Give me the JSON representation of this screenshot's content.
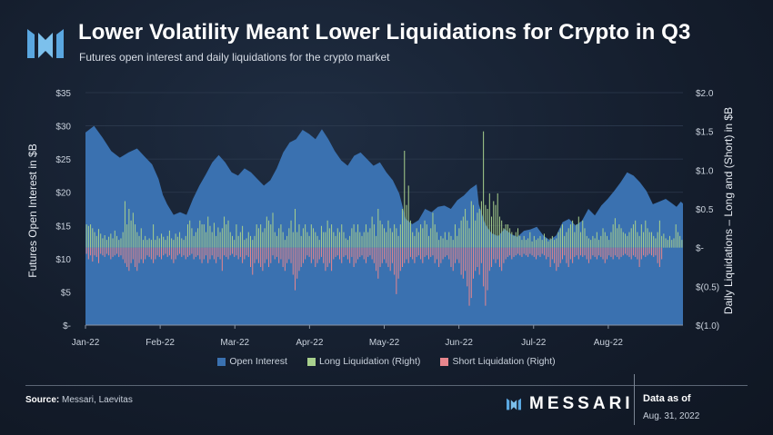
{
  "header": {
    "title": "Lower Volatility Meant Lower Liquidations for Crypto in Q3",
    "subtitle": "Futures open interest and daily liquidations for the crypto market"
  },
  "colors": {
    "open_interest": "#3a71b0",
    "long_liquidation": "#a8d08d",
    "short_liquidation": "#e7868d",
    "accent": "#5aa7e0"
  },
  "chart_data": {
    "type": "area",
    "x_labels": [
      "Jan-22",
      "Feb-22",
      "Mar-22",
      "Apr-22",
      "May-22",
      "Jun-22",
      "Jul-22",
      "Aug-22"
    ],
    "ylabel": "Futures Open Interest in $B",
    "ylabel_right": "Daily Liquidations – Long and (Short) in $B",
    "y_left_ticks": [
      "$35",
      "$30",
      "$25",
      "$20",
      "$15",
      "$10",
      "$5",
      "$-"
    ],
    "y_right_ticks": [
      "$2.0",
      "$1.5",
      "$1.0",
      "$0.5",
      "$-",
      "$(0.5)",
      "$(1.0)"
    ],
    "ylim_left": [
      0,
      35
    ],
    "ylim_right": [
      -1.0,
      2.0
    ],
    "grid": true,
    "legend_position": "bottom",
    "series": [
      {
        "name": "Open Interest",
        "axis": "left",
        "points": [
          [
            0,
            29.0
          ],
          [
            4,
            30.0
          ],
          [
            8,
            28.2
          ],
          [
            12,
            26.2
          ],
          [
            16,
            25.2
          ],
          [
            20,
            26.0
          ],
          [
            24,
            26.6
          ],
          [
            28,
            25.2
          ],
          [
            31,
            24.2
          ],
          [
            34,
            22.0
          ],
          [
            36,
            19.6
          ],
          [
            38,
            18.2
          ],
          [
            41,
            16.6
          ],
          [
            44,
            17.0
          ],
          [
            47,
            16.6
          ],
          [
            50,
            19.0
          ],
          [
            53,
            21.0
          ],
          [
            56,
            22.7
          ],
          [
            59,
            24.5
          ],
          [
            62,
            25.6
          ],
          [
            65,
            24.5
          ],
          [
            68,
            23.0
          ],
          [
            71,
            22.5
          ],
          [
            74,
            23.6
          ],
          [
            77,
            23.0
          ],
          [
            80,
            22.0
          ],
          [
            83,
            21.0
          ],
          [
            86,
            21.8
          ],
          [
            89,
            23.6
          ],
          [
            92,
            26.0
          ],
          [
            95,
            27.5
          ],
          [
            98,
            28.0
          ],
          [
            101,
            29.4
          ],
          [
            104,
            28.8
          ],
          [
            107,
            28.0
          ],
          [
            110,
            29.5
          ],
          [
            113,
            28.0
          ],
          [
            116,
            26.2
          ],
          [
            119,
            24.8
          ],
          [
            122,
            24.0
          ],
          [
            125,
            25.5
          ],
          [
            128,
            26.0
          ],
          [
            131,
            25.0
          ],
          [
            134,
            24.0
          ],
          [
            137,
            24.5
          ],
          [
            140,
            23.0
          ],
          [
            143,
            21.8
          ],
          [
            146,
            19.8
          ],
          [
            149,
            16.0
          ],
          [
            152,
            15.2
          ],
          [
            155,
            15.8
          ],
          [
            158,
            17.5
          ],
          [
            161,
            17.0
          ],
          [
            164,
            17.8
          ],
          [
            167,
            18.0
          ],
          [
            170,
            17.5
          ],
          [
            173,
            18.8
          ],
          [
            176,
            19.5
          ],
          [
            179,
            20.5
          ],
          [
            182,
            21.2
          ],
          [
            183,
            18.2
          ],
          [
            186,
            15.2
          ],
          [
            189,
            13.8
          ],
          [
            192,
            13.4
          ],
          [
            195,
            14.5
          ],
          [
            198,
            13.7
          ],
          [
            201,
            13.3
          ],
          [
            204,
            14.2
          ],
          [
            207,
            14.4
          ],
          [
            210,
            14.8
          ],
          [
            213,
            13.5
          ],
          [
            216,
            12.8
          ],
          [
            219,
            13.5
          ],
          [
            222,
            15.5
          ],
          [
            225,
            16.0
          ],
          [
            228,
            15.0
          ],
          [
            231,
            15.7
          ],
          [
            234,
            17.5
          ],
          [
            237,
            16.5
          ],
          [
            240,
            18.0
          ],
          [
            243,
            19.0
          ],
          [
            246,
            20.2
          ],
          [
            249,
            21.5
          ],
          [
            252,
            23.0
          ],
          [
            255,
            22.5
          ],
          [
            258,
            21.5
          ],
          [
            261,
            20.2
          ],
          [
            264,
            18.2
          ],
          [
            267,
            18.6
          ],
          [
            270,
            19.0
          ],
          [
            273,
            18.3
          ],
          [
            275,
            17.8
          ],
          [
            277,
            18.6
          ],
          [
            278,
            18.3
          ]
        ]
      },
      {
        "name": "Long Liquidation (Right)",
        "axis": "right",
        "type": "bar",
        "values": [
          0.3,
          0.28,
          0.3,
          0.25,
          0.2,
          0.15,
          0.24,
          0.18,
          0.12,
          0.16,
          0.1,
          0.14,
          0.18,
          0.12,
          0.22,
          0.15,
          0.1,
          0.12,
          0.2,
          0.6,
          0.3,
          0.5,
          0.35,
          0.45,
          0.3,
          0.2,
          0.15,
          0.25,
          0.1,
          0.15,
          0.1,
          0.12,
          0.1,
          0.3,
          0.1,
          0.15,
          0.12,
          0.18,
          0.14,
          0.1,
          0.15,
          0.22,
          0.12,
          0.1,
          0.18,
          0.14,
          0.2,
          0.12,
          0.1,
          0.15,
          0.3,
          0.35,
          0.25,
          0.15,
          0.2,
          0.25,
          0.35,
          0.3,
          0.3,
          0.2,
          0.4,
          0.28,
          0.2,
          0.32,
          0.15,
          0.26,
          0.2,
          0.25,
          0.4,
          0.3,
          0.35,
          0.2,
          0.15,
          0.1,
          0.3,
          0.15,
          0.2,
          0.28,
          0.1,
          0.12,
          0.2,
          0.15,
          0.1,
          0.15,
          0.3,
          0.25,
          0.3,
          0.2,
          0.25,
          0.4,
          0.35,
          0.3,
          0.45,
          0.2,
          0.15,
          0.25,
          0.3,
          0.2,
          0.1,
          0.15,
          0.25,
          0.35,
          0.2,
          0.5,
          0.2,
          0.3,
          0.15,
          0.25,
          0.3,
          0.2,
          0.15,
          0.3,
          0.25,
          0.2,
          0.15,
          0.1,
          0.28,
          0.2,
          0.2,
          0.35,
          0.25,
          0.3,
          0.2,
          0.15,
          0.25,
          0.2,
          0.3,
          0.2,
          0.12,
          0.1,
          0.15,
          0.25,
          0.3,
          0.2,
          0.3,
          0.2,
          0.15,
          0.2,
          0.3,
          0.2,
          0.25,
          0.4,
          0.3,
          0.15,
          0.5,
          0.35,
          0.3,
          0.25,
          0.2,
          0.35,
          0.25,
          0.2,
          0.3,
          0.25,
          0.15,
          0.3,
          0.5,
          1.25,
          0.55,
          0.8,
          0.35,
          0.2,
          0.15,
          0.25,
          0.2,
          0.3,
          0.25,
          0.35,
          0.3,
          0.15,
          0.25,
          0.45,
          0.3,
          0.2,
          0.1,
          0.15,
          0.12,
          0.2,
          0.1,
          0.2,
          0.15,
          0.1,
          0.3,
          0.15,
          0.25,
          0.35,
          0.4,
          0.5,
          0.35,
          0.25,
          0.6,
          0.55,
          0.35,
          0.45,
          0.5,
          0.6,
          1.5,
          0.55,
          0.5,
          0.7,
          0.4,
          0.6,
          0.55,
          0.7,
          0.4,
          0.35,
          0.25,
          0.3,
          0.3,
          0.25,
          0.2,
          0.15,
          0.2,
          0.25,
          0.15,
          0.1,
          0.15,
          0.1,
          0.12,
          0.2,
          0.08,
          0.15,
          0.1,
          0.12,
          0.15,
          0.1,
          0.18,
          0.12,
          0.08,
          0.12,
          0.15,
          0.1,
          0.12,
          0.2,
          0.25,
          0.3,
          0.15,
          0.2,
          0.25,
          0.3,
          0.35,
          0.2,
          0.3,
          0.4,
          0.2,
          0.35,
          0.25,
          0.15,
          0.12,
          0.1,
          0.15,
          0.12,
          0.2,
          0.1,
          0.15,
          0.25,
          0.2,
          0.15,
          0.1,
          0.2,
          0.3,
          0.38,
          0.25,
          0.3,
          0.25,
          0.2,
          0.18,
          0.15,
          0.2,
          0.25,
          0.3,
          0.35,
          0.2,
          0.15,
          0.3,
          0.2,
          0.35,
          0.25,
          0.2,
          0.2,
          0.15,
          0.12,
          0.2,
          0.35,
          0.15,
          0.18,
          0.12,
          0.1,
          0.15,
          0.1,
          0.12,
          0.3,
          0.2,
          0.15,
          0.1
        ]
      },
      {
        "name": "Short Liquidation (Right)",
        "axis": "right",
        "type": "bar",
        "values": [
          -0.08,
          -0.15,
          -0.1,
          -0.18,
          -0.1,
          -0.12,
          -0.2,
          -0.08,
          -0.1,
          -0.12,
          -0.08,
          -0.1,
          -0.15,
          -0.12,
          -0.1,
          -0.08,
          -0.12,
          -0.1,
          -0.15,
          -0.2,
          -0.25,
          -0.3,
          -0.2,
          -0.15,
          -0.25,
          -0.3,
          -0.2,
          -0.15,
          -0.2,
          -0.15,
          -0.1,
          -0.12,
          -0.15,
          -0.2,
          -0.15,
          -0.1,
          -0.12,
          -0.15,
          -0.1,
          -0.08,
          -0.12,
          -0.1,
          -0.15,
          -0.2,
          -0.15,
          -0.1,
          -0.08,
          -0.12,
          -0.1,
          -0.15,
          -0.12,
          -0.1,
          -0.08,
          -0.15,
          -0.12,
          -0.1,
          -0.15,
          -0.2,
          -0.15,
          -0.1,
          -0.2,
          -0.15,
          -0.1,
          -0.15,
          -0.2,
          -0.12,
          -0.15,
          -0.3,
          -0.1,
          -0.12,
          -0.15,
          -0.1,
          -0.08,
          -0.12,
          -0.1,
          -0.15,
          -0.12,
          -0.2,
          -0.15,
          -0.1,
          -0.12,
          -0.25,
          -0.35,
          -0.2,
          -0.15,
          -0.2,
          -0.25,
          -0.3,
          -0.2,
          -0.15,
          -0.25,
          -0.2,
          -0.1,
          -0.15,
          -0.12,
          -0.2,
          -0.15,
          -0.25,
          -0.3,
          -0.2,
          -0.15,
          -0.2,
          -0.35,
          -0.55,
          -0.4,
          -0.3,
          -0.25,
          -0.2,
          -0.15,
          -0.1,
          -0.12,
          -0.2,
          -0.15,
          -0.25,
          -0.2,
          -0.15,
          -0.12,
          -0.2,
          -0.3,
          -0.25,
          -0.2,
          -0.3,
          -0.15,
          -0.12,
          -0.1,
          -0.15,
          -0.2,
          -0.12,
          -0.1,
          -0.15,
          -0.2,
          -0.12,
          -0.25,
          -0.2,
          -0.15,
          -0.12,
          -0.1,
          -0.15,
          -0.2,
          -0.12,
          -0.1,
          -0.15,
          -0.2,
          -0.3,
          -0.4,
          -0.25,
          -0.2,
          -0.15,
          -0.2,
          -0.25,
          -0.3,
          -0.2,
          -0.35,
          -0.6,
          -0.4,
          -0.3,
          -0.25,
          -0.2,
          -0.15,
          -0.2,
          -0.12,
          -0.15,
          -0.2,
          -0.12,
          -0.1,
          -0.15,
          -0.2,
          -0.12,
          -0.1,
          -0.15,
          -0.12,
          -0.1,
          -0.2,
          -0.15,
          -0.25,
          -0.2,
          -0.15,
          -0.12,
          -0.1,
          -0.15,
          -0.25,
          -0.3,
          -0.2,
          -0.15,
          -0.2,
          -0.35,
          -0.4,
          -0.3,
          -0.5,
          -0.75,
          -0.65,
          -0.4,
          -0.3,
          -0.25,
          -0.35,
          -0.2,
          -0.5,
          -0.75,
          -0.55,
          -0.3,
          -0.25,
          -0.15,
          -0.2,
          -0.15,
          -0.25,
          -0.3,
          -0.2,
          -0.15,
          -0.12,
          -0.1,
          -0.15,
          -0.12,
          -0.1,
          -0.08,
          -0.1,
          -0.12,
          -0.08,
          -0.1,
          -0.12,
          -0.08,
          -0.1,
          -0.12,
          -0.15,
          -0.1,
          -0.12,
          -0.08,
          -0.1,
          -0.15,
          -0.12,
          -0.25,
          -0.15,
          -0.2,
          -0.3,
          -0.25,
          -0.2,
          -0.15,
          -0.1,
          -0.2,
          -0.25,
          -0.15,
          -0.2,
          -0.12,
          -0.1,
          -0.15,
          -0.1,
          -0.12,
          -0.1,
          -0.15,
          -0.2,
          -0.15,
          -0.1,
          -0.12,
          -0.15,
          -0.1,
          -0.12,
          -0.15,
          -0.2,
          -0.15,
          -0.1,
          -0.12,
          -0.15,
          -0.1,
          -0.12,
          -0.15,
          -0.12,
          -0.1,
          -0.08,
          -0.1,
          -0.12,
          -0.15,
          -0.1,
          -0.12,
          -0.15,
          -0.25,
          -0.15,
          -0.1,
          -0.12,
          -0.1,
          -0.08,
          -0.1,
          -0.12,
          -0.1,
          -0.2,
          -0.25,
          -0.15
        ]
      }
    ]
  },
  "legend": {
    "open_interest": "Open Interest",
    "long": "Long Liquidation (Right)",
    "short": "Short Liquidation (Right)"
  },
  "footer": {
    "source_label": "Source:",
    "source_text": "Messari, Laevitas",
    "brand": "MESSARI",
    "as_of_label": "Data as of",
    "as_of_date": "Aug. 31, 2022"
  }
}
